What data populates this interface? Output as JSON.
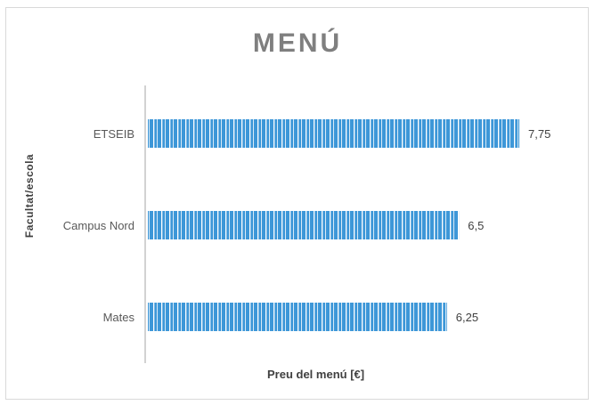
{
  "chart_data": {
    "type": "bar",
    "orientation": "horizontal",
    "title": "MENÚ",
    "xlabel": "Preu del menú [€]",
    "ylabel": "Facultat/escola",
    "categories": [
      "ETSEIB",
      "Campus Nord",
      "Mates"
    ],
    "values": [
      7.75,
      6.5,
      6.25
    ],
    "value_labels": [
      "7,75",
      "6,5",
      "6,25"
    ],
    "xlim": [
      0,
      8
    ],
    "grid": false,
    "legend": "none",
    "colors": {
      "bar": "#3d97d8",
      "bar_stripe": "#ffffff",
      "axis": "#a6a6a6",
      "title": "#7f7f7f"
    }
  }
}
